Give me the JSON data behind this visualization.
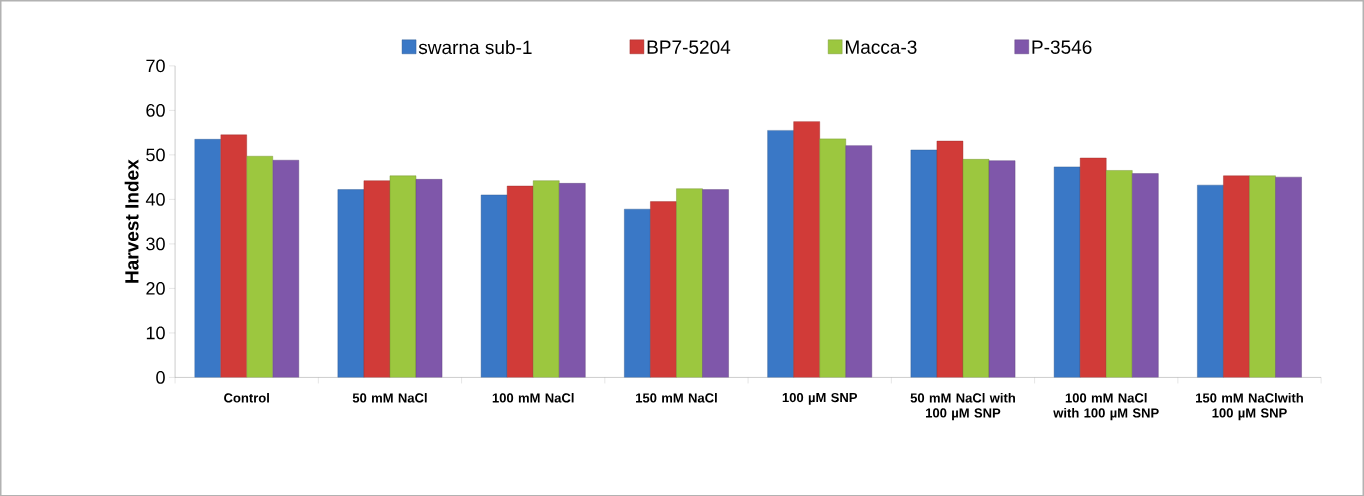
{
  "chart_data": {
    "type": "bar",
    "ylabel": "Harvest Index",
    "categories": [
      "Control",
      "50 mM NaCl",
      "100 mM NaCl",
      "150 mM NaCl",
      "100 µM SNP",
      "50 mM NaCl with 100 µM SNP",
      "100 mM NaCl with 100 µM SNP",
      "150 mM NaClwith 100 µM SNP"
    ],
    "series": [
      {
        "name": "swarna sub-1",
        "color": "#3a78c6",
        "values": [
          53.5,
          42.2,
          41.0,
          37.8,
          55.5,
          51.1,
          47.3,
          43.2
        ]
      },
      {
        "name": "BP7-5204",
        "color": "#d13b38",
        "values": [
          54.5,
          44.2,
          43.0,
          39.5,
          57.5,
          53.1,
          49.3,
          45.3
        ]
      },
      {
        "name": "Macca-3",
        "color": "#9cc73f",
        "values": [
          49.7,
          45.3,
          44.2,
          42.4,
          53.6,
          49.0,
          46.5,
          45.3
        ]
      },
      {
        "name": "P-3546",
        "color": "#7f57aa",
        "values": [
          48.8,
          44.5,
          43.6,
          42.2,
          52.1,
          48.7,
          45.8,
          45.0
        ]
      }
    ],
    "ylim": [
      0,
      70
    ],
    "yticks": [
      0,
      10,
      20,
      30,
      40,
      50,
      60,
      70
    ],
    "legend": "top"
  }
}
